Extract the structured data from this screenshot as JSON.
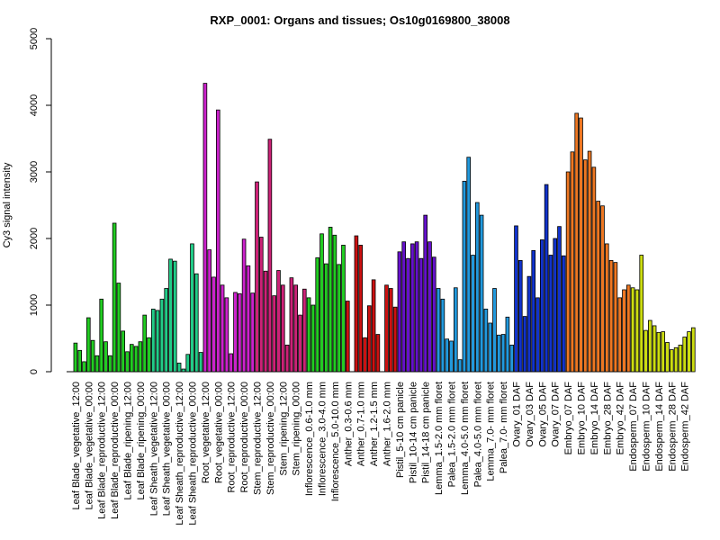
{
  "chart_data": {
    "type": "bar",
    "title": "RXP_0001: Organs and tissues; Os10g0169800_38008",
    "xlabel": "",
    "ylabel": "Cy3 signal intensity",
    "ylim": [
      0,
      5000
    ],
    "yticks": [
      0,
      1000,
      2000,
      3000,
      4000,
      5000
    ],
    "grid": false,
    "legend": "none",
    "groups": [
      {
        "labels": [
          "Leaf Blade_vegetative_12:00",
          "",
          ""
        ],
        "values": [
          430,
          320,
          150
        ],
        "color": "#22cc22"
      },
      {
        "labels": [
          "Leaf Blade_vegetative_00:00",
          "",
          ""
        ],
        "values": [
          810,
          470,
          240
        ],
        "color": "#22cc22"
      },
      {
        "labels": [
          "Leaf Blade_reproductive_12:00",
          "",
          ""
        ],
        "values": [
          1090,
          450,
          240
        ],
        "color": "#22cc22"
      },
      {
        "labels": [
          "Leaf Blade_reproductive_00:00",
          "",
          ""
        ],
        "values": [
          2230,
          1330,
          610
        ],
        "color": "#22cc22"
      },
      {
        "labels": [
          "Leaf Blade_ripening_12:00",
          "",
          ""
        ],
        "values": [
          300,
          410,
          380
        ],
        "color": "#22cc22"
      },
      {
        "labels": [
          "Leaf Blade_ripening_00:00",
          "",
          ""
        ],
        "values": [
          450,
          850,
          510
        ],
        "color": "#22cc22"
      },
      {
        "labels": [
          "Leaf Sheath_vegetative_12:00",
          "",
          ""
        ],
        "values": [
          940,
          920,
          1090
        ],
        "color": "#22cc88"
      },
      {
        "labels": [
          "Leaf Sheath_vegetative_00:00",
          "",
          ""
        ],
        "values": [
          1250,
          1690,
          1660
        ],
        "color": "#22cc88"
      },
      {
        "labels": [
          "Leaf Sheath_reproductive_12:00",
          "",
          ""
        ],
        "values": [
          130,
          40,
          260
        ],
        "color": "#22cc88"
      },
      {
        "labels": [
          "Leaf Sheath_reproductive_00:00",
          "",
          ""
        ],
        "values": [
          1920,
          1470,
          290
        ],
        "color": "#22cc88"
      },
      {
        "labels": [
          "Root_vegetative_12:00",
          "",
          ""
        ],
        "values": [
          4330,
          1830,
          1420
        ],
        "color": "#cc22cc"
      },
      {
        "labels": [
          "Root_vegetative_00:00",
          "",
          ""
        ],
        "values": [
          3930,
          1300,
          1110
        ],
        "color": "#cc22cc"
      },
      {
        "labels": [
          "Root_reproductive_12:00",
          "",
          ""
        ],
        "values": [
          270,
          1190,
          1170
        ],
        "color": "#cc22cc"
      },
      {
        "labels": [
          "Root_reproductive_00:00",
          "",
          ""
        ],
        "values": [
          1990,
          1590,
          1180
        ],
        "color": "#cc22cc"
      },
      {
        "labels": [
          "Stem_reproductive_12:00",
          "",
          ""
        ],
        "values": [
          2850,
          2020,
          1510
        ],
        "color": "#cc2277"
      },
      {
        "labels": [
          "Stem_reproductive_00:00",
          "",
          ""
        ],
        "values": [
          3490,
          1140,
          1520
        ],
        "color": "#cc2277"
      },
      {
        "labels": [
          "Stem_ripening_12:00",
          "",
          ""
        ],
        "values": [
          1300,
          400,
          1410
        ],
        "color": "#cc2277"
      },
      {
        "labels": [
          "Stem_ripening_00:00",
          "",
          ""
        ],
        "values": [
          1300,
          850,
          1240
        ],
        "color": "#cc2277"
      },
      {
        "labels": [
          "Inflorescence_0.6-1.0 mm",
          "",
          ""
        ],
        "values": [
          1110,
          1000,
          1710
        ],
        "color": "#22cc22"
      },
      {
        "labels": [
          "Inflorescence_3.0-4.0 mm",
          "",
          ""
        ],
        "values": [
          2070,
          1620,
          2170
        ],
        "color": "#22cc22"
      },
      {
        "labels": [
          "Inflorescence_5.0-10.0 mm",
          "",
          ""
        ],
        "values": [
          2050,
          1610,
          1900
        ],
        "color": "#22cc22"
      },
      {
        "labels": [
          "Anther_0.3-0.6 mm",
          "",
          ""
        ],
        "values": [
          1060,
          0,
          2040
        ],
        "color": "#cc1111"
      },
      {
        "labels": [
          "Anther_0.7-1.0 mm",
          "",
          ""
        ],
        "values": [
          1900,
          510,
          990
        ],
        "color": "#cc1111"
      },
      {
        "labels": [
          "Anther_1.2-1.5 mm",
          "",
          ""
        ],
        "values": [
          1380,
          560,
          0
        ],
        "color": "#cc1111"
      },
      {
        "labels": [
          "Anther_1.6-2.0 mm",
          "",
          ""
        ],
        "values": [
          1300,
          1250,
          970
        ],
        "color": "#cc1111"
      },
      {
        "labels": [
          "Pistil_5-10 cm panicle",
          "",
          ""
        ],
        "values": [
          1800,
          1950,
          1700
        ],
        "color": "#6611cc"
      },
      {
        "labels": [
          "Pistil_10-14 cm panicle",
          "",
          ""
        ],
        "values": [
          1920,
          1950,
          1700
        ],
        "color": "#6611cc"
      },
      {
        "labels": [
          "Pistil_14-18 cm panicle",
          "",
          ""
        ],
        "values": [
          2350,
          1950,
          1720
        ],
        "color": "#6611cc"
      },
      {
        "labels": [
          "Lemma_1.5-2.0 mm floret",
          "",
          ""
        ],
        "values": [
          1250,
          1090,
          490
        ],
        "color": "#2299dd"
      },
      {
        "labels": [
          "Palea_1.5-2.0 mm floret",
          "",
          ""
        ],
        "values": [
          460,
          1260,
          180
        ],
        "color": "#2299dd"
      },
      {
        "labels": [
          "Lemma_4.0-5.0 mm floret",
          "",
          ""
        ],
        "values": [
          2860,
          3220,
          1750
        ],
        "color": "#2299dd"
      },
      {
        "labels": [
          "Palea_4.0-5.0 mm floret",
          "",
          ""
        ],
        "values": [
          2540,
          2350,
          940
        ],
        "color": "#2299dd"
      },
      {
        "labels": [
          "Lemma_7.0- mm floret",
          "",
          ""
        ],
        "values": [
          730,
          1250,
          550
        ],
        "color": "#2299dd"
      },
      {
        "labels": [
          "Palea_7.0- mm floret",
          "",
          ""
        ],
        "values": [
          560,
          820,
          400
        ],
        "color": "#2299dd"
      },
      {
        "labels": [
          "Ovary_01 DAF",
          "",
          ""
        ],
        "values": [
          2190,
          1670,
          830
        ],
        "color": "#1133cc"
      },
      {
        "labels": [
          "Ovary_03 DAF",
          "",
          ""
        ],
        "values": [
          1430,
          1820,
          1110
        ],
        "color": "#1133cc"
      },
      {
        "labels": [
          "Ovary_05 DAF",
          "",
          ""
        ],
        "values": [
          1980,
          2810,
          1750
        ],
        "color": "#1133cc"
      },
      {
        "labels": [
          "Ovary_07 DAF",
          "",
          ""
        ],
        "values": [
          2000,
          2180,
          1740
        ],
        "color": "#1133cc"
      },
      {
        "labels": [
          "Embryo_07 DAF",
          "",
          ""
        ],
        "values": [
          3000,
          3300,
          3880
        ],
        "color": "#ee7722"
      },
      {
        "labels": [
          "Embryo_10 DAF",
          "",
          ""
        ],
        "values": [
          3810,
          3180,
          3310
        ],
        "color": "#ee7722"
      },
      {
        "labels": [
          "Embryo_14 DAF",
          "",
          ""
        ],
        "values": [
          3070,
          2560,
          2490
        ],
        "color": "#ee7722"
      },
      {
        "labels": [
          "Embryo_28 DAF",
          "",
          ""
        ],
        "values": [
          1920,
          1670,
          1640
        ],
        "color": "#ee7722"
      },
      {
        "labels": [
          "Embryo_42 DAF",
          "",
          ""
        ],
        "values": [
          1110,
          1230,
          1300
        ],
        "color": "#ee7722"
      },
      {
        "labels": [
          "Endosperm_07 DAF",
          "",
          ""
        ],
        "values": [
          1260,
          1230,
          1750
        ],
        "color": "#ccdd11"
      },
      {
        "labels": [
          "Endosperm_10 DAF",
          "",
          ""
        ],
        "values": [
          620,
          770,
          690
        ],
        "color": "#ccdd11"
      },
      {
        "labels": [
          "Endosperm_14 DAF",
          "",
          ""
        ],
        "values": [
          590,
          600,
          440
        ],
        "color": "#ccdd11"
      },
      {
        "labels": [
          "Endosperm_28 DAF",
          "",
          ""
        ],
        "values": [
          330,
          360,
          400
        ],
        "color": "#ccdd11"
      },
      {
        "labels": [
          "Endosperm_42 DAF",
          "",
          ""
        ],
        "values": [
          520,
          600,
          660
        ],
        "color": "#ccdd11"
      }
    ]
  }
}
